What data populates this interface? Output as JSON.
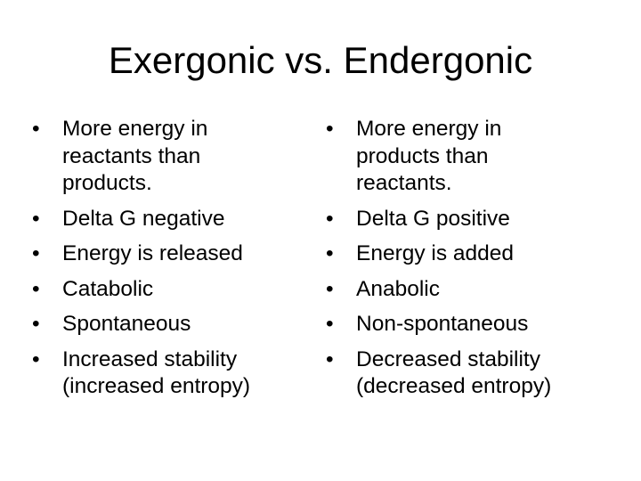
{
  "slide": {
    "title": "Exergonic vs. Endergonic",
    "left_column": [
      "More energy in reactants than products.",
      "Delta G negative",
      "Energy is released",
      "Catabolic",
      "Spontaneous",
      "Increased stability (increased entropy)"
    ],
    "right_column": [
      "More energy in products  than reactants.",
      "Delta G positive",
      "Energy is added",
      "Anabolic",
      "Non-spontaneous",
      "Decreased stability (decreased entropy)"
    ]
  }
}
